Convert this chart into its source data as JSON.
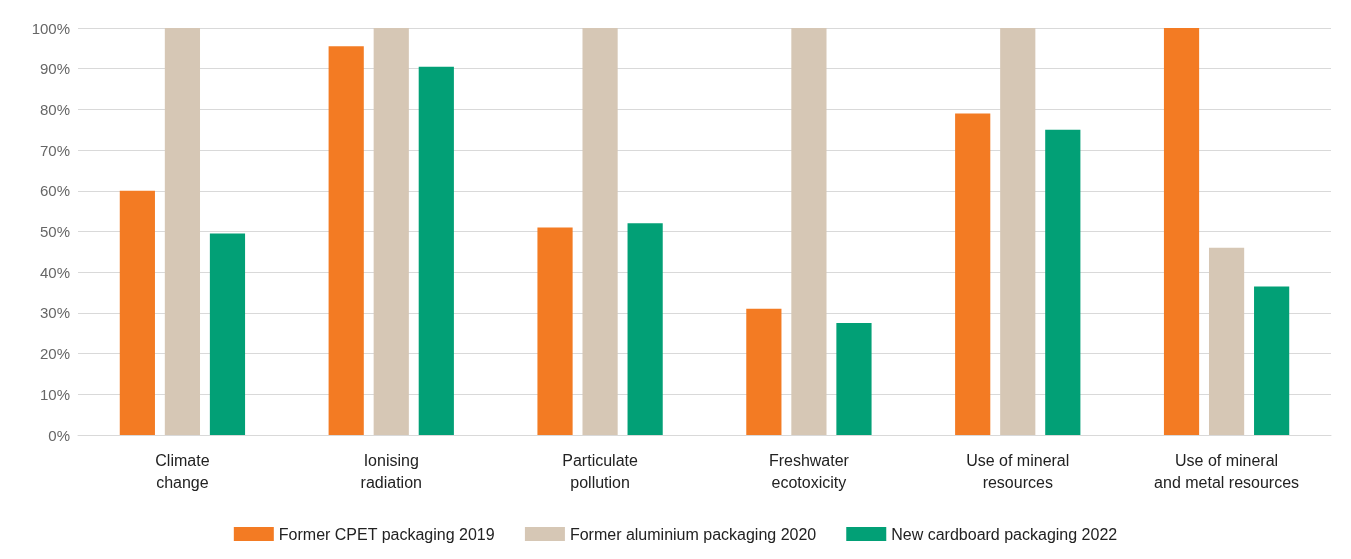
{
  "chart_data": {
    "type": "bar",
    "categories": [
      "Climate\nchange",
      "Ionising\nradiation",
      "Particulate\npollution",
      "Freshwater\necotoxicity",
      "Use of mineral\nresources",
      "Use of mineral\nand metal resources"
    ],
    "series": [
      {
        "name": "Former CPET packaging 2019",
        "color": "#f37b23",
        "values": [
          60,
          95.5,
          51,
          31,
          79,
          100
        ]
      },
      {
        "name": "Former aluminium packaging 2020",
        "color": "#d6c7b5",
        "values": [
          100,
          100,
          100,
          100,
          100,
          46
        ]
      },
      {
        "name": "New cardboard packaging 2022",
        "color": "#02a076",
        "values": [
          49.5,
          90.5,
          52,
          27.5,
          75,
          36.5
        ]
      }
    ],
    "ylim": [
      0,
      100
    ],
    "yticks": [
      {
        "value": 0,
        "label": "0%"
      },
      {
        "value": 10,
        "label": "10%"
      },
      {
        "value": 20,
        "label": "20%"
      },
      {
        "value": 30,
        "label": "30%"
      },
      {
        "value": 40,
        "label": "40%"
      },
      {
        "value": 50,
        "label": "50%"
      },
      {
        "value": 60,
        "label": "60%"
      },
      {
        "value": 70,
        "label": "70%"
      },
      {
        "value": 80,
        "label": "80%"
      },
      {
        "value": 90,
        "label": "90%"
      },
      {
        "value": 100,
        "label": "100%"
      }
    ],
    "grid": "y",
    "legend": "bottom"
  }
}
